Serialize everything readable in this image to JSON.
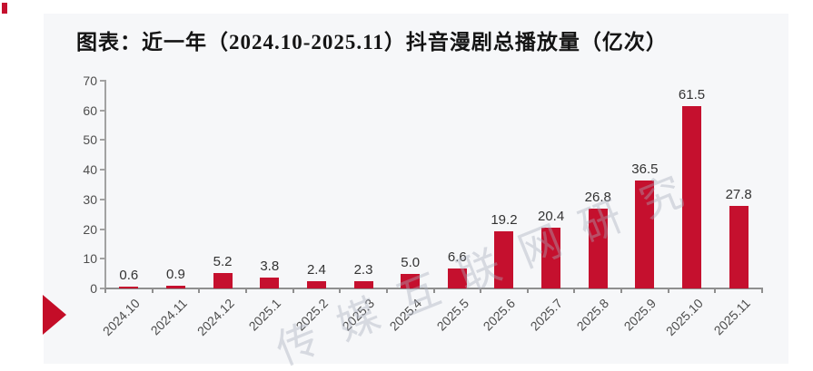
{
  "page": {
    "title": "图表：近一年（2024.10-2025.11）抖音漫剧总播放量（亿次）",
    "watermark": "传媒互联网研究"
  },
  "chart_data": {
    "type": "bar",
    "title": "图表：近一年（2024.10-2025.11）抖音漫剧总播放量（亿次）",
    "xlabel": "",
    "ylabel": "",
    "unit": "亿次",
    "categories": [
      "2024.10",
      "2024.11",
      "2024.12",
      "2025.1",
      "2025.2",
      "2025.3",
      "2025.4",
      "2025.5",
      "2025.6",
      "2025.7",
      "2025.8",
      "2025.9",
      "2025.10",
      "2025.11"
    ],
    "values": [
      0.6,
      0.9,
      5.2,
      3.8,
      2.4,
      2.3,
      5.0,
      6.6,
      19.2,
      20.4,
      26.8,
      36.5,
      61.5,
      27.8
    ],
    "ylim": [
      0,
      70
    ],
    "yticks": [
      0,
      10,
      20,
      30,
      40,
      50,
      60,
      70
    ],
    "grid": false,
    "legend": "none",
    "value_labels": true,
    "bar_color": "#c5102e",
    "axis_color": "#9e9e9e",
    "label_color": "#4d4d4d",
    "value_label_color": "#333333"
  },
  "decor": {
    "marker_color": "#c40d28"
  }
}
